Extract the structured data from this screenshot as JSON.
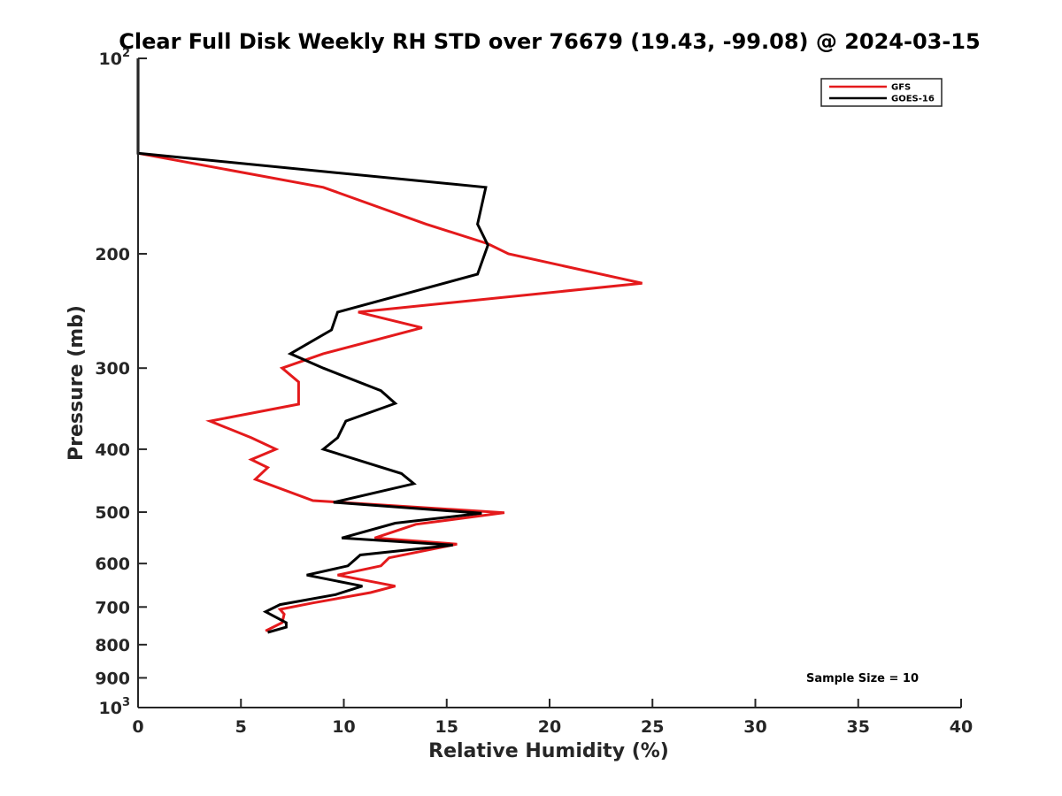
{
  "chart_data": {
    "type": "line",
    "title": "Clear Full Disk Weekly RH STD over 76679 (19.43, -99.08) @ 2024-03-15",
    "xlabel": "Relative Humidity (%)",
    "ylabel": "Pressure (mb)",
    "xlim": [
      0,
      40
    ],
    "ylim": [
      100,
      1000
    ],
    "yscale": "log",
    "y_reversed": true,
    "grid": false,
    "legend_position": "top-right",
    "xticks": [
      0,
      5,
      10,
      15,
      20,
      25,
      30,
      35,
      40
    ],
    "yticks": [
      {
        "value": 100,
        "base": "10",
        "exp": "2"
      },
      {
        "value": 200,
        "label": "200"
      },
      {
        "value": 300,
        "label": "300"
      },
      {
        "value": 400,
        "label": "400"
      },
      {
        "value": 500,
        "label": "500"
      },
      {
        "value": 600,
        "label": "600"
      },
      {
        "value": 700,
        "label": "700"
      },
      {
        "value": 800,
        "label": "800"
      },
      {
        "value": 900,
        "label": "900"
      },
      {
        "value": 1000,
        "base": "10",
        "exp": "3"
      }
    ],
    "annotation": "Sample Size = 10",
    "series": [
      {
        "name": "GFS",
        "color": "#e41a1c",
        "points": [
          [
            0,
            100
          ],
          [
            0,
            120
          ],
          [
            0,
            140
          ],
          [
            9.0,
            158
          ],
          [
            14.0,
            180
          ],
          [
            17.0,
            193
          ],
          [
            18.0,
            200
          ],
          [
            24.5,
            222
          ],
          [
            10.7,
            246
          ],
          [
            13.8,
            260
          ],
          [
            9.0,
            285
          ],
          [
            7.0,
            300
          ],
          [
            7.8,
            315
          ],
          [
            7.8,
            341
          ],
          [
            3.5,
            362
          ],
          [
            5.5,
            384
          ],
          [
            6.7,
            400
          ],
          [
            5.5,
            415
          ],
          [
            6.3,
            427
          ],
          [
            5.7,
            445
          ],
          [
            8.5,
            480
          ],
          [
            17.8,
            501
          ],
          [
            13.5,
            522
          ],
          [
            11.5,
            548
          ],
          [
            15.5,
            560
          ],
          [
            12.2,
            588
          ],
          [
            11.8,
            605
          ],
          [
            9.7,
            625
          ],
          [
            12.5,
            650
          ],
          [
            11.3,
            665
          ],
          [
            8.5,
            690
          ],
          [
            6.9,
            706
          ],
          [
            7.1,
            718
          ],
          [
            7.0,
            740
          ],
          [
            6.2,
            762
          ]
        ]
      },
      {
        "name": "GOES-16",
        "color": "#000000",
        "points": [
          [
            0,
            100
          ],
          [
            0,
            120
          ],
          [
            0,
            140
          ],
          [
            16.9,
            158
          ],
          [
            16.5,
            180
          ],
          [
            17.0,
            194
          ],
          [
            16.5,
            215
          ],
          [
            9.7,
            246
          ],
          [
            9.4,
            262
          ],
          [
            7.4,
            285
          ],
          [
            9.0,
            300
          ],
          [
            11.8,
            325
          ],
          [
            12.5,
            340
          ],
          [
            10.1,
            362
          ],
          [
            9.7,
            384
          ],
          [
            9.0,
            400
          ],
          [
            12.8,
            436
          ],
          [
            13.4,
            452
          ],
          [
            9.5,
            483
          ],
          [
            16.7,
            502
          ],
          [
            12.5,
            520
          ],
          [
            9.9,
            548
          ],
          [
            15.3,
            562
          ],
          [
            10.8,
            582
          ],
          [
            10.2,
            605
          ],
          [
            8.2,
            625
          ],
          [
            10.9,
            650
          ],
          [
            9.6,
            670
          ],
          [
            6.9,
            694
          ],
          [
            6.2,
            712
          ],
          [
            7.2,
            740
          ],
          [
            7.2,
            752
          ],
          [
            6.3,
            766
          ]
        ]
      }
    ]
  }
}
